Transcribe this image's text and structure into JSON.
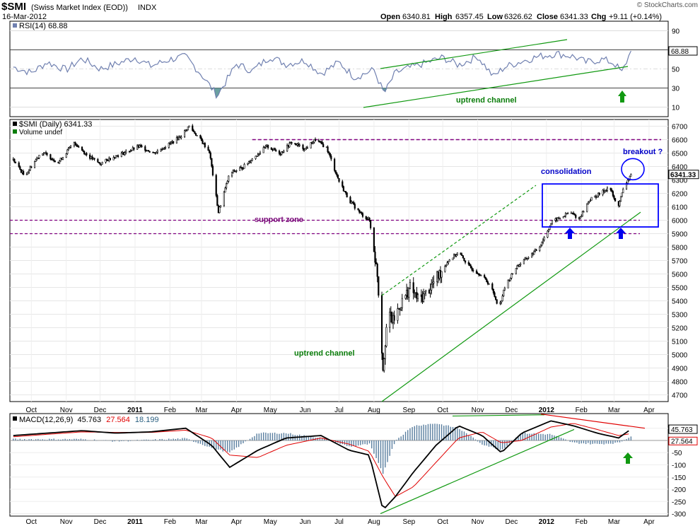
{
  "header": {
    "symbol": "$SMI",
    "name": "(Swiss Market Index (EOD))",
    "exchange": "INDX",
    "date": "16-Mar-2012",
    "watermark": "© StockCharts.com",
    "open_label": "Open",
    "open": "6340.81",
    "high_label": "High",
    "high": "6357.45",
    "low_label": "Low",
    "low": "6326.62",
    "close_label": "Close",
    "close": "6341.33",
    "chg_label": "Chg",
    "chg": "+9.11 (+0.14%)"
  },
  "colors": {
    "price": "#000000",
    "rsi": "#7080b0",
    "rsi_fill": "#6aa0a0",
    "trend": "#119911",
    "support": "#800080",
    "consolidation": "#0000ff",
    "macd": "#000000",
    "signal": "#e00000",
    "hist": "#5a7fa0",
    "arrow_blue": "#0000ee",
    "arrow_green": "#119911"
  },
  "chart_data": [
    {
      "type": "line",
      "panel": "rsi",
      "legend": "RSI(14) 68.88",
      "ylim": [
        0,
        100
      ],
      "yticks": [
        10,
        30,
        50,
        70,
        90
      ],
      "current_label": "68.88",
      "date_range": [
        "2010-09-15",
        "2012-03-16"
      ],
      "series": [
        {
          "x": [
            "2010-09-15",
            "2010-10-01",
            "2010-10-15",
            "2010-11-01",
            "2010-11-15",
            "2010-12-01",
            "2010-12-15",
            "2011-01-01",
            "2011-01-15",
            "2011-02-01",
            "2011-02-15",
            "2011-03-01",
            "2011-03-15",
            "2011-04-01",
            "2011-04-15",
            "2011-05-01",
            "2011-05-15",
            "2011-06-01",
            "2011-06-15",
            "2011-07-01",
            "2011-07-15",
            "2011-08-01",
            "2011-08-10",
            "2011-08-20",
            "2011-09-01",
            "2011-09-15",
            "2011-10-01",
            "2011-10-15",
            "2011-11-01",
            "2011-11-15",
            "2011-11-25",
            "2011-12-10",
            "2011-12-25",
            "2012-01-10",
            "2012-01-25",
            "2012-02-05",
            "2012-02-20",
            "2012-03-01",
            "2012-03-08",
            "2012-03-16"
          ],
          "values": [
            52,
            46,
            57,
            49,
            61,
            50,
            55,
            62,
            53,
            60,
            63,
            44,
            22,
            55,
            48,
            63,
            55,
            59,
            45,
            57,
            41,
            49,
            24,
            46,
            51,
            56,
            62,
            54,
            63,
            42,
            52,
            58,
            63,
            66,
            63,
            57,
            60,
            56,
            46,
            69
          ]
        }
      ],
      "annotations": [
        {
          "text": "uptrend channel"
        }
      ]
    },
    {
      "type": "candlestick",
      "panel": "price",
      "legend": "$SMI (Daily) 6341.33",
      "volume_legend": "Volume undef",
      "ylim": [
        4650,
        6750
      ],
      "yticks": [
        4700,
        4800,
        4900,
        5000,
        5100,
        5200,
        5300,
        5400,
        5500,
        5600,
        5700,
        5800,
        5900,
        6000,
        6100,
        6200,
        6300,
        6400,
        6500,
        6600,
        6700
      ],
      "current_label": "6341.33",
      "x_tick_labels": [
        "Oct",
        "Nov",
        "Dec",
        "2011",
        "Feb",
        "Mar",
        "Apr",
        "May",
        "Jun",
        "Jul",
        "Aug",
        "Sep",
        "Oct",
        "Nov",
        "Dec",
        "2012",
        "Feb",
        "Mar",
        "Apr"
      ],
      "x_tick_dates": [
        "2010-10-01",
        "2010-11-01",
        "2010-12-01",
        "2011-01-01",
        "2011-02-01",
        "2011-03-01",
        "2011-04-01",
        "2011-05-01",
        "2011-06-01",
        "2011-07-01",
        "2011-08-01",
        "2011-09-01",
        "2011-10-01",
        "2011-11-01",
        "2011-12-01",
        "2012-01-01",
        "2012-02-01",
        "2012-03-01",
        "2012-04-01"
      ],
      "series": [
        {
          "name": "$SMI",
          "x": [
            "2010-09-15",
            "2010-09-25",
            "2010-10-10",
            "2010-10-25",
            "2010-11-08",
            "2010-11-20",
            "2010-12-01",
            "2010-12-12",
            "2010-12-22",
            "2011-01-05",
            "2011-01-18",
            "2011-01-30",
            "2011-02-10",
            "2011-02-18",
            "2011-02-28",
            "2011-03-08",
            "2011-03-16",
            "2011-03-26",
            "2011-04-06",
            "2011-04-18",
            "2011-04-28",
            "2011-05-10",
            "2011-05-20",
            "2011-06-01",
            "2011-06-10",
            "2011-06-20",
            "2011-07-01",
            "2011-07-10",
            "2011-07-20",
            "2011-07-28",
            "2011-08-04",
            "2011-08-09",
            "2011-08-13",
            "2011-08-18",
            "2011-08-25",
            "2011-09-02",
            "2011-09-10",
            "2011-09-20",
            "2011-09-28",
            "2011-10-06",
            "2011-10-15",
            "2011-10-25",
            "2011-11-03",
            "2011-11-12",
            "2011-11-20",
            "2011-11-25",
            "2011-12-05",
            "2011-12-15",
            "2011-12-25",
            "2012-01-06",
            "2012-01-14",
            "2012-01-22",
            "2012-01-30",
            "2012-02-08",
            "2012-02-18",
            "2012-02-26",
            "2012-03-04",
            "2012-03-10",
            "2012-03-16"
          ],
          "values": [
            6450,
            6330,
            6510,
            6430,
            6580,
            6480,
            6420,
            6470,
            6500,
            6550,
            6500,
            6560,
            6620,
            6700,
            6600,
            6510,
            6060,
            6350,
            6390,
            6480,
            6550,
            6500,
            6580,
            6530,
            6600,
            6540,
            6290,
            6150,
            6050,
            6000,
            5600,
            4900,
            5300,
            5250,
            5380,
            5500,
            5400,
            5500,
            5600,
            5700,
            5760,
            5650,
            5600,
            5520,
            5350,
            5500,
            5650,
            5720,
            5790,
            5990,
            6020,
            6060,
            6010,
            6150,
            6200,
            6250,
            6090,
            6250,
            6341
          ]
        }
      ],
      "annotations": [
        {
          "text": "breakout ?"
        },
        {
          "text": "consolidation"
        },
        {
          "text": "support zone"
        },
        {
          "text": "uptrend channel"
        }
      ],
      "levels": {
        "resistance": 6600,
        "support_high": 6000,
        "support_low": 5900
      }
    },
    {
      "type": "line",
      "panel": "macd",
      "legend_prefix": "MACD(12,26,9)",
      "legend_macd": "45.763",
      "legend_signal": "27.564",
      "legend_hist": "18.199",
      "ylim": [
        -310,
        110
      ],
      "yticks": [
        -300,
        -250,
        -200,
        -150,
        -100,
        -50,
        0,
        50
      ],
      "current_labels": [
        "45.763",
        "27.564"
      ],
      "series": [
        {
          "name": "MACD",
          "x": [
            "2010-09-15",
            "2010-10-15",
            "2010-11-15",
            "2010-12-15",
            "2011-01-15",
            "2011-02-15",
            "2011-03-10",
            "2011-03-26",
            "2011-04-20",
            "2011-05-15",
            "2011-06-15",
            "2011-07-10",
            "2011-07-28",
            "2011-08-09",
            "2011-08-20",
            "2011-09-05",
            "2011-09-25",
            "2011-10-15",
            "2011-11-05",
            "2011-11-22",
            "2011-12-10",
            "2012-01-05",
            "2012-01-25",
            "2012-02-15",
            "2012-03-05",
            "2012-03-16"
          ],
          "values": [
            20,
            30,
            40,
            30,
            35,
            50,
            -20,
            -110,
            -40,
            10,
            20,
            -40,
            -60,
            -285,
            -230,
            -130,
            -20,
            60,
            20,
            -50,
            30,
            80,
            60,
            30,
            10,
            46
          ]
        },
        {
          "name": "Signal",
          "x": [
            "2010-09-15",
            "2010-10-15",
            "2010-11-15",
            "2010-12-15",
            "2011-01-15",
            "2011-02-15",
            "2011-03-10",
            "2011-03-26",
            "2011-04-20",
            "2011-05-15",
            "2011-06-15",
            "2011-07-10",
            "2011-07-28",
            "2011-08-09",
            "2011-08-20",
            "2011-09-05",
            "2011-09-25",
            "2011-10-15",
            "2011-11-05",
            "2011-11-22",
            "2011-12-10",
            "2012-01-05",
            "2012-01-25",
            "2012-02-15",
            "2012-03-05",
            "2012-03-16"
          ],
          "values": [
            15,
            25,
            35,
            33,
            33,
            42,
            10,
            -60,
            -70,
            -20,
            10,
            -15,
            -45,
            -150,
            -230,
            -190,
            -90,
            10,
            35,
            -10,
            0,
            55,
            70,
            45,
            20,
            28
          ]
        },
        {
          "name": "Histogram",
          "x": [
            "2010-09-15",
            "2010-10-15",
            "2010-11-15",
            "2010-12-15",
            "2011-01-15",
            "2011-02-15",
            "2011-03-10",
            "2011-03-26",
            "2011-04-20",
            "2011-05-15",
            "2011-06-15",
            "2011-07-10",
            "2011-07-28",
            "2011-08-09",
            "2011-08-20",
            "2011-09-05",
            "2011-09-25",
            "2011-10-15",
            "2011-11-05",
            "2011-11-22",
            "2011-12-10",
            "2012-01-05",
            "2012-01-25",
            "2012-02-15",
            "2012-03-05",
            "2012-03-16"
          ],
          "values": [
            5,
            5,
            5,
            -3,
            2,
            8,
            -30,
            -50,
            30,
            30,
            10,
            -25,
            -15,
            -135,
            0,
            60,
            70,
            50,
            -15,
            -40,
            30,
            25,
            -10,
            -15,
            -10,
            18
          ]
        }
      ]
    }
  ]
}
